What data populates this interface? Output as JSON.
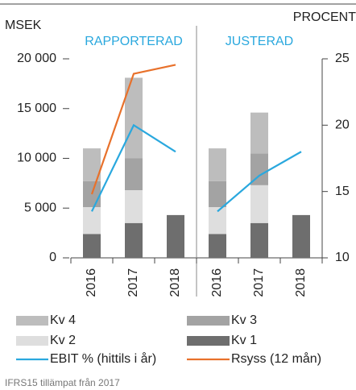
{
  "chart_data": {
    "type": "bar",
    "stacked": true,
    "ylabel": "MSEK",
    "y2label": "PROCENT",
    "ylim": [
      0,
      20000
    ],
    "yticks": [
      0,
      {
        "value": 5000,
        "label": "5 000"
      },
      {
        "value": 10000,
        "label": "10 000"
      },
      {
        "value": 15000,
        "label": "15 000"
      },
      {
        "value": 20000,
        "label": "20 000"
      }
    ],
    "y2lim": [
      10,
      25
    ],
    "y2ticks": [
      10,
      15,
      20,
      25
    ],
    "panels": [
      {
        "title": "RAPPORTERAD",
        "categories": [
          "2016",
          "2017",
          "2018"
        ]
      },
      {
        "title": "JUSTERAD",
        "categories": [
          "2016",
          "2017",
          "2018"
        ]
      }
    ],
    "series": [
      {
        "name": "Kv 1",
        "color": "#6e6e6e",
        "kind": "bar",
        "values": [
          [
            2400,
            3500,
            4300
          ],
          [
            2400,
            3500,
            4300
          ]
        ]
      },
      {
        "name": "Kv 2",
        "color": "#dedede",
        "kind": "bar",
        "values": [
          [
            2700,
            3300,
            null
          ],
          [
            2700,
            3800,
            null
          ]
        ]
      },
      {
        "name": "Kv 3",
        "color": "#a3a3a3",
        "kind": "bar",
        "values": [
          [
            2600,
            3200,
            null
          ],
          [
            2600,
            3200,
            null
          ]
        ]
      },
      {
        "name": "Kv 4",
        "color": "#bdbdbd",
        "kind": "bar",
        "values": [
          [
            3300,
            8100,
            null
          ],
          [
            3300,
            4100,
            null
          ]
        ]
      },
      {
        "name": "EBIT % (hittils i år)",
        "color": "#2aa8de",
        "kind": "line",
        "axis": "y2",
        "values": [
          [
            13.5,
            20,
            18
          ],
          [
            13.5,
            16.2,
            18
          ]
        ]
      },
      {
        "name": "Rsyss (12 mån)",
        "color": "#e8712b",
        "kind": "line",
        "values": [
          [
            6400,
            18500,
            19400
          ],
          [
            null,
            null,
            null
          ]
        ]
      }
    ],
    "legend_order": [
      3,
      2,
      1,
      0,
      4,
      5
    ],
    "footnote": "IFRS15 tillämpat från 2017"
  }
}
